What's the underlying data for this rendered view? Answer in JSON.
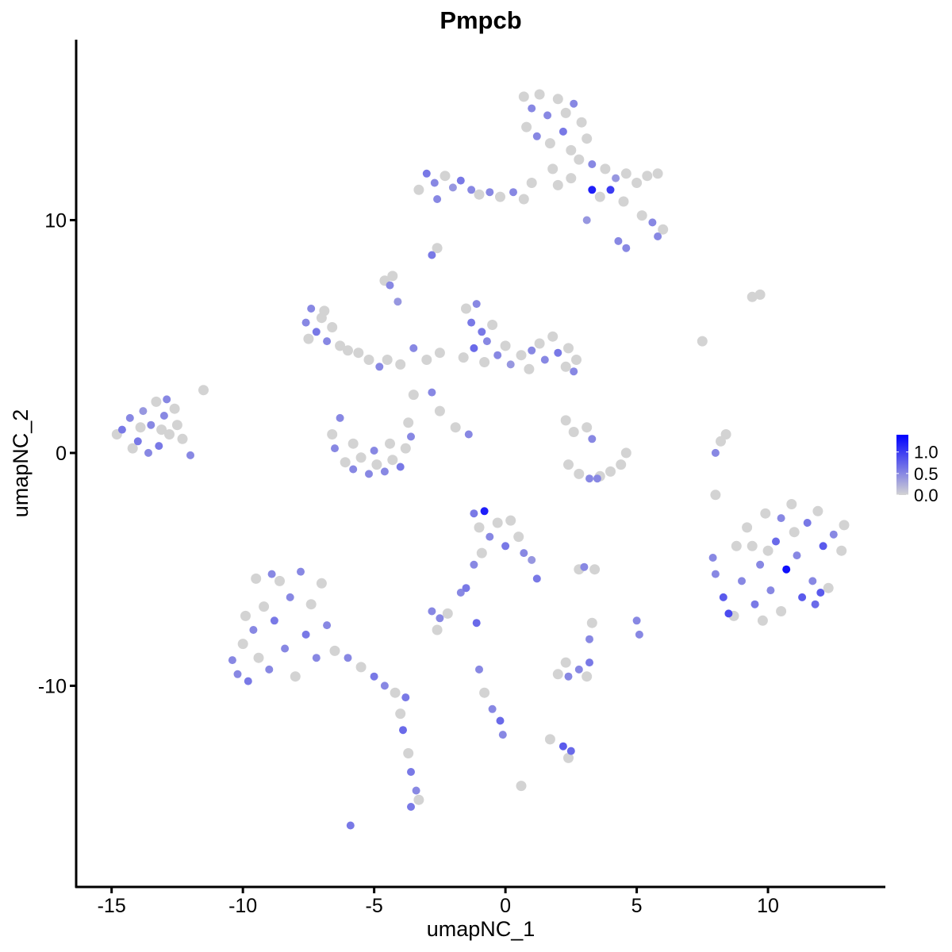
{
  "chart_data": {
    "type": "scatter",
    "title": "Pmpcb",
    "xlabel": "umapNC_1",
    "ylabel": "umapNC_2",
    "xlim": [
      -16.35,
      14.47
    ],
    "ylim": [
      -18.64,
      17.75
    ],
    "x_ticks": [
      -15,
      -10,
      -5,
      0,
      5,
      10
    ],
    "y_ticks": [
      -10,
      0,
      10
    ],
    "grid": false,
    "legend": {
      "placement": "right",
      "type": "colorbar",
      "ticks": [
        0.0,
        0.5,
        1.0
      ],
      "tick_labels": [
        "0.0",
        "0.5",
        "1.0"
      ],
      "range": [
        0,
        1.4
      ],
      "low_color": "#d3d3d3",
      "high_color": "#0000ff"
    },
    "point_fields": [
      "umapNC_1",
      "umapNC_2",
      "expression"
    ],
    "points": [
      [
        -14.6,
        1.0,
        0.6
      ],
      [
        -14.3,
        1.5,
        0.5
      ],
      [
        -14.0,
        0.5,
        0.6
      ],
      [
        -13.8,
        1.8,
        0.4
      ],
      [
        -13.5,
        1.2,
        0.5
      ],
      [
        -13.3,
        2.2,
        0
      ],
      [
        -13.2,
        0.3,
        0.6
      ],
      [
        -13.0,
        1.6,
        0.5
      ],
      [
        -12.8,
        0.8,
        0
      ],
      [
        -12.6,
        1.9,
        0
      ],
      [
        -12.3,
        0.6,
        0
      ],
      [
        -12.0,
        -0.1,
        0.5
      ],
      [
        -14.2,
        0.2,
        0
      ],
      [
        -13.6,
        0.0,
        0.5
      ],
      [
        -12.9,
        2.3,
        0.5
      ],
      [
        -12.5,
        1.2,
        0
      ],
      [
        -11.5,
        2.7,
        0
      ],
      [
        -14.8,
        0.8,
        0
      ],
      [
        -13.9,
        1.1,
        0
      ],
      [
        -13.1,
        1.0,
        0
      ],
      [
        0.7,
        15.3,
        0
      ],
      [
        1.0,
        14.8,
        0.5
      ],
      [
        1.3,
        15.4,
        0
      ],
      [
        1.6,
        14.5,
        0.5
      ],
      [
        2.0,
        15.2,
        0
      ],
      [
        2.3,
        14.6,
        0
      ],
      [
        2.6,
        15.0,
        0.5
      ],
      [
        2.9,
        14.2,
        0
      ],
      [
        3.1,
        13.5,
        0
      ],
      [
        0.8,
        14.0,
        0
      ],
      [
        1.2,
        13.6,
        0.5
      ],
      [
        1.7,
        13.3,
        0
      ],
      [
        2.2,
        13.8,
        0.6
      ],
      [
        2.5,
        13.0,
        0
      ],
      [
        2.8,
        12.6,
        0
      ],
      [
        3.3,
        12.4,
        0.5
      ],
      [
        3.8,
        12.2,
        0
      ],
      [
        4.2,
        11.8,
        0.4
      ],
      [
        4.6,
        12.0,
        0
      ],
      [
        5.0,
        11.6,
        0
      ],
      [
        5.4,
        11.9,
        0
      ],
      [
        5.8,
        12.0,
        0
      ],
      [
        3.3,
        11.3,
        1.2
      ],
      [
        3.6,
        11.0,
        0
      ],
      [
        4.5,
        10.8,
        0
      ],
      [
        5.2,
        10.2,
        0
      ],
      [
        5.6,
        9.9,
        0.5
      ],
      [
        6.0,
        9.6,
        0
      ],
      [
        5.8,
        9.3,
        0.5
      ],
      [
        4.3,
        9.1,
        0.5
      ],
      [
        4.6,
        8.8,
        0.5
      ],
      [
        3.1,
        10.0,
        0.4
      ],
      [
        2.0,
        11.5,
        0
      ],
      [
        1.8,
        12.2,
        0
      ],
      [
        2.5,
        11.8,
        0
      ],
      [
        4.0,
        11.3,
        1.0
      ],
      [
        -3.3,
        11.3,
        0
      ],
      [
        -3.0,
        12.0,
        0.6
      ],
      [
        -2.7,
        11.6,
        0.5
      ],
      [
        -2.6,
        10.9,
        0.5
      ],
      [
        -2.3,
        11.9,
        0
      ],
      [
        -2.0,
        11.4,
        0.4
      ],
      [
        -1.7,
        11.7,
        0.6
      ],
      [
        -1.3,
        11.3,
        0.5
      ],
      [
        -1.0,
        11.1,
        0
      ],
      [
        -0.6,
        11.2,
        0.5
      ],
      [
        -0.2,
        11.0,
        0
      ],
      [
        0.3,
        11.2,
        0.5
      ],
      [
        0.7,
        10.9,
        0
      ],
      [
        1.0,
        11.6,
        0
      ],
      [
        -2.8,
        8.5,
        0.6
      ],
      [
        -2.6,
        8.8,
        0
      ],
      [
        -4.6,
        7.4,
        0
      ],
      [
        -4.4,
        7.2,
        0.5
      ],
      [
        -4.3,
        7.6,
        0
      ],
      [
        -4.1,
        6.5,
        0.4
      ],
      [
        -7.6,
        5.6,
        0.5
      ],
      [
        -7.4,
        6.2,
        0.5
      ],
      [
        -7.2,
        5.2,
        0.6
      ],
      [
        -7.0,
        5.8,
        0
      ],
      [
        -6.8,
        4.8,
        0.5
      ],
      [
        -6.6,
        5.4,
        0
      ],
      [
        -6.3,
        4.6,
        0
      ],
      [
        -6.0,
        4.4,
        0
      ],
      [
        -7.5,
        4.9,
        0
      ],
      [
        -6.9,
        6.1,
        0
      ],
      [
        -5.6,
        4.3,
        0
      ],
      [
        -5.2,
        4.0,
        0
      ],
      [
        -4.8,
        3.7,
        0.5
      ],
      [
        -4.5,
        4.0,
        0
      ],
      [
        -4.0,
        3.8,
        0
      ],
      [
        -3.5,
        4.5,
        0.5
      ],
      [
        -3.0,
        4.0,
        0
      ],
      [
        -2.5,
        4.3,
        0
      ],
      [
        -3.5,
        2.5,
        0
      ],
      [
        -2.8,
        2.6,
        0.5
      ],
      [
        -2.5,
        1.8,
        0
      ],
      [
        -1.9,
        1.1,
        0
      ],
      [
        -1.4,
        0.8,
        0.5
      ],
      [
        -1.5,
        6.2,
        0
      ],
      [
        -1.3,
        5.6,
        0.6
      ],
      [
        -1.1,
        6.4,
        0.5
      ],
      [
        -0.9,
        5.2,
        0.6
      ],
      [
        -0.7,
        4.8,
        0.5
      ],
      [
        -0.5,
        5.5,
        0
      ],
      [
        -0.3,
        4.2,
        0.5
      ],
      [
        0.0,
        4.6,
        0
      ],
      [
        -1.2,
        4.5,
        0.7
      ],
      [
        -0.8,
        3.9,
        0
      ],
      [
        -1.6,
        4.1,
        0
      ],
      [
        0.2,
        3.8,
        0.4
      ],
      [
        0.6,
        4.2,
        0
      ],
      [
        0.9,
        3.6,
        0
      ],
      [
        1.3,
        4.7,
        0
      ],
      [
        1.5,
        4.0,
        0.5
      ],
      [
        1.8,
        5.0,
        0
      ],
      [
        2.0,
        4.3,
        0.6
      ],
      [
        2.3,
        3.7,
        0
      ],
      [
        2.6,
        3.5,
        0.5
      ],
      [
        2.4,
        4.5,
        0
      ],
      [
        2.7,
        4.0,
        0
      ],
      [
        1.0,
        4.4,
        0.5
      ],
      [
        -6.6,
        0.8,
        0
      ],
      [
        -6.5,
        0.2,
        0.5
      ],
      [
        -6.3,
        1.5,
        0.5
      ],
      [
        -6.1,
        -0.4,
        0
      ],
      [
        -5.8,
        -0.7,
        0.5
      ],
      [
        -5.5,
        -0.2,
        0
      ],
      [
        -5.2,
        -0.9,
        0.5
      ],
      [
        -4.9,
        -0.5,
        0
      ],
      [
        -4.6,
        -0.8,
        0.5
      ],
      [
        -4.3,
        -0.3,
        0
      ],
      [
        -4.0,
        -0.6,
        0.6
      ],
      [
        -3.8,
        0.2,
        0
      ],
      [
        -3.6,
        0.7,
        0.5
      ],
      [
        -3.7,
        1.3,
        0
      ],
      [
        -5.8,
        0.4,
        0
      ],
      [
        -5.0,
        0.1,
        0.5
      ],
      [
        -4.4,
        0.4,
        0
      ],
      [
        2.3,
        1.4,
        0
      ],
      [
        2.6,
        0.9,
        0
      ],
      [
        3.1,
        1.1,
        0
      ],
      [
        3.3,
        0.6,
        0.5
      ],
      [
        2.4,
        -0.5,
        0
      ],
      [
        2.8,
        -0.9,
        0
      ],
      [
        3.2,
        -1.1,
        0.5
      ],
      [
        3.6,
        -1.0,
        0
      ],
      [
        4.0,
        -0.8,
        0
      ],
      [
        4.4,
        -0.5,
        0
      ],
      [
        4.6,
        0.0,
        0
      ],
      [
        3.5,
        -1.1,
        0.5
      ],
      [
        9.4,
        6.7,
        0
      ],
      [
        9.7,
        6.8,
        0
      ],
      [
        7.5,
        4.8,
        0
      ],
      [
        8.0,
        0.0,
        0.5
      ],
      [
        8.2,
        0.5,
        0
      ],
      [
        8.4,
        0.8,
        0
      ],
      [
        8.0,
        -1.8,
        0
      ],
      [
        7.9,
        -4.5,
        0.5
      ],
      [
        8.0,
        -5.2,
        0.5
      ],
      [
        8.3,
        -6.2,
        0.8
      ],
      [
        8.5,
        -6.9,
        0.9
      ],
      [
        8.8,
        -4.0,
        0
      ],
      [
        9.0,
        -5.5,
        0.5
      ],
      [
        9.2,
        -3.2,
        0
      ],
      [
        9.5,
        -6.5,
        0.6
      ],
      [
        9.7,
        -4.8,
        0.5
      ],
      [
        9.9,
        -2.6,
        0
      ],
      [
        10.1,
        -5.9,
        0.5
      ],
      [
        10.3,
        -3.8,
        0.7
      ],
      [
        10.5,
        -6.8,
        0
      ],
      [
        10.7,
        -5.0,
        1.3
      ],
      [
        10.9,
        -2.2,
        0
      ],
      [
        11.1,
        -4.4,
        0.5
      ],
      [
        11.3,
        -6.2,
        0.8
      ],
      [
        11.5,
        -3.0,
        0.6
      ],
      [
        11.7,
        -5.5,
        0.5
      ],
      [
        11.9,
        -2.5,
        0
      ],
      [
        12.1,
        -4.0,
        0.8
      ],
      [
        12.3,
        -5.8,
        0
      ],
      [
        12.5,
        -3.5,
        0.5
      ],
      [
        12.8,
        -4.2,
        0
      ],
      [
        12.9,
        -3.1,
        0
      ],
      [
        10.0,
        -4.2,
        0
      ],
      [
        11.0,
        -3.4,
        0
      ],
      [
        9.4,
        -4.0,
        0
      ],
      [
        10.5,
        -2.8,
        0.5
      ],
      [
        11.8,
        -6.5,
        0.7
      ],
      [
        8.7,
        -7.0,
        0
      ],
      [
        9.8,
        -7.2,
        0
      ],
      [
        12.0,
        -6.0,
        0.8
      ],
      [
        -1.2,
        -2.6,
        0.6
      ],
      [
        -1.0,
        -3.2,
        0
      ],
      [
        -0.8,
        -2.5,
        1.2
      ],
      [
        -0.6,
        -3.6,
        0.5
      ],
      [
        -0.3,
        -3.0,
        0
      ],
      [
        0.0,
        -4.0,
        0.6
      ],
      [
        0.2,
        -2.9,
        0
      ],
      [
        0.5,
        -3.6,
        0
      ],
      [
        0.7,
        -4.3,
        0.5
      ],
      [
        -0.9,
        -4.3,
        0
      ],
      [
        1.0,
        -4.6,
        0.4
      ],
      [
        1.2,
        -5.4,
        0.6
      ],
      [
        -1.2,
        -4.8,
        0.5
      ],
      [
        -1.5,
        -5.8,
        0.6
      ],
      [
        -1.7,
        -6.0,
        0.5
      ],
      [
        2.8,
        -5.0,
        0
      ],
      [
        3.0,
        -4.9,
        0.5
      ],
      [
        3.4,
        -5.0,
        0
      ],
      [
        -10.4,
        -8.9,
        0.5
      ],
      [
        -10.2,
        -9.5,
        0.5
      ],
      [
        -10.0,
        -8.2,
        0
      ],
      [
        -9.8,
        -9.8,
        0.6
      ],
      [
        -9.6,
        -7.6,
        0.5
      ],
      [
        -9.4,
        -8.8,
        0
      ],
      [
        -9.2,
        -6.6,
        0
      ],
      [
        -9.0,
        -9.3,
        0.5
      ],
      [
        -8.8,
        -7.2,
        0.6
      ],
      [
        -8.6,
        -5.5,
        0
      ],
      [
        -8.4,
        -8.4,
        0.5
      ],
      [
        -8.2,
        -6.2,
        0.5
      ],
      [
        -8.0,
        -9.6,
        0
      ],
      [
        -7.8,
        -5.1,
        0.5
      ],
      [
        -7.6,
        -7.8,
        0.6
      ],
      [
        -7.4,
        -6.5,
        0
      ],
      [
        -7.2,
        -8.8,
        0.5
      ],
      [
        -7.0,
        -5.6,
        0
      ],
      [
        -6.8,
        -7.4,
        0.5
      ],
      [
        -9.5,
        -5.4,
        0
      ],
      [
        -8.9,
        -5.2,
        0.5
      ],
      [
        -9.9,
        -7.0,
        0
      ],
      [
        -6.5,
        -8.5,
        0
      ],
      [
        -6.0,
        -8.8,
        0.5
      ],
      [
        -5.5,
        -9.2,
        0
      ],
      [
        -5.0,
        -9.6,
        0.6
      ],
      [
        -4.6,
        -10.0,
        0.5
      ],
      [
        -4.2,
        -10.3,
        0
      ],
      [
        -3.8,
        -10.5,
        0.6
      ],
      [
        -4.0,
        -11.2,
        0
      ],
      [
        -3.9,
        -11.9,
        0.7
      ],
      [
        -3.7,
        -12.9,
        0
      ],
      [
        -3.6,
        -13.7,
        0.6
      ],
      [
        -3.4,
        -14.5,
        0.5
      ],
      [
        -3.6,
        -15.2,
        0.6
      ],
      [
        -3.3,
        -14.9,
        0
      ],
      [
        -2.8,
        -6.8,
        0.5
      ],
      [
        -2.5,
        -7.1,
        0.5
      ],
      [
        -2.2,
        -6.9,
        0
      ],
      [
        -2.6,
        -7.6,
        0
      ],
      [
        -1.1,
        -7.3,
        0.7
      ],
      [
        2.0,
        -9.5,
        0
      ],
      [
        2.4,
        -9.6,
        0.5
      ],
      [
        2.8,
        -9.3,
        0.5
      ],
      [
        3.1,
        -9.6,
        0
      ],
      [
        3.2,
        -9.0,
        0.6
      ],
      [
        2.3,
        -9.0,
        0
      ],
      [
        -1.0,
        -9.3,
        0.5
      ],
      [
        -0.8,
        -10.3,
        0
      ],
      [
        -0.5,
        -11.0,
        0.5
      ],
      [
        -0.2,
        -11.5,
        0.7
      ],
      [
        -0.1,
        -12.1,
        0.5
      ],
      [
        1.7,
        -12.3,
        0
      ],
      [
        2.2,
        -12.6,
        0.8
      ],
      [
        2.5,
        -12.8,
        0.7
      ],
      [
        2.4,
        -13.1,
        0
      ],
      [
        -5.9,
        -16.0,
        0.6
      ],
      [
        0.6,
        -14.3,
        0
      ],
      [
        5.0,
        -7.2,
        0.5
      ],
      [
        5.1,
        -7.8,
        0.5
      ],
      [
        3.3,
        -7.3,
        0
      ],
      [
        3.2,
        -8.0,
        0.5
      ]
    ]
  }
}
